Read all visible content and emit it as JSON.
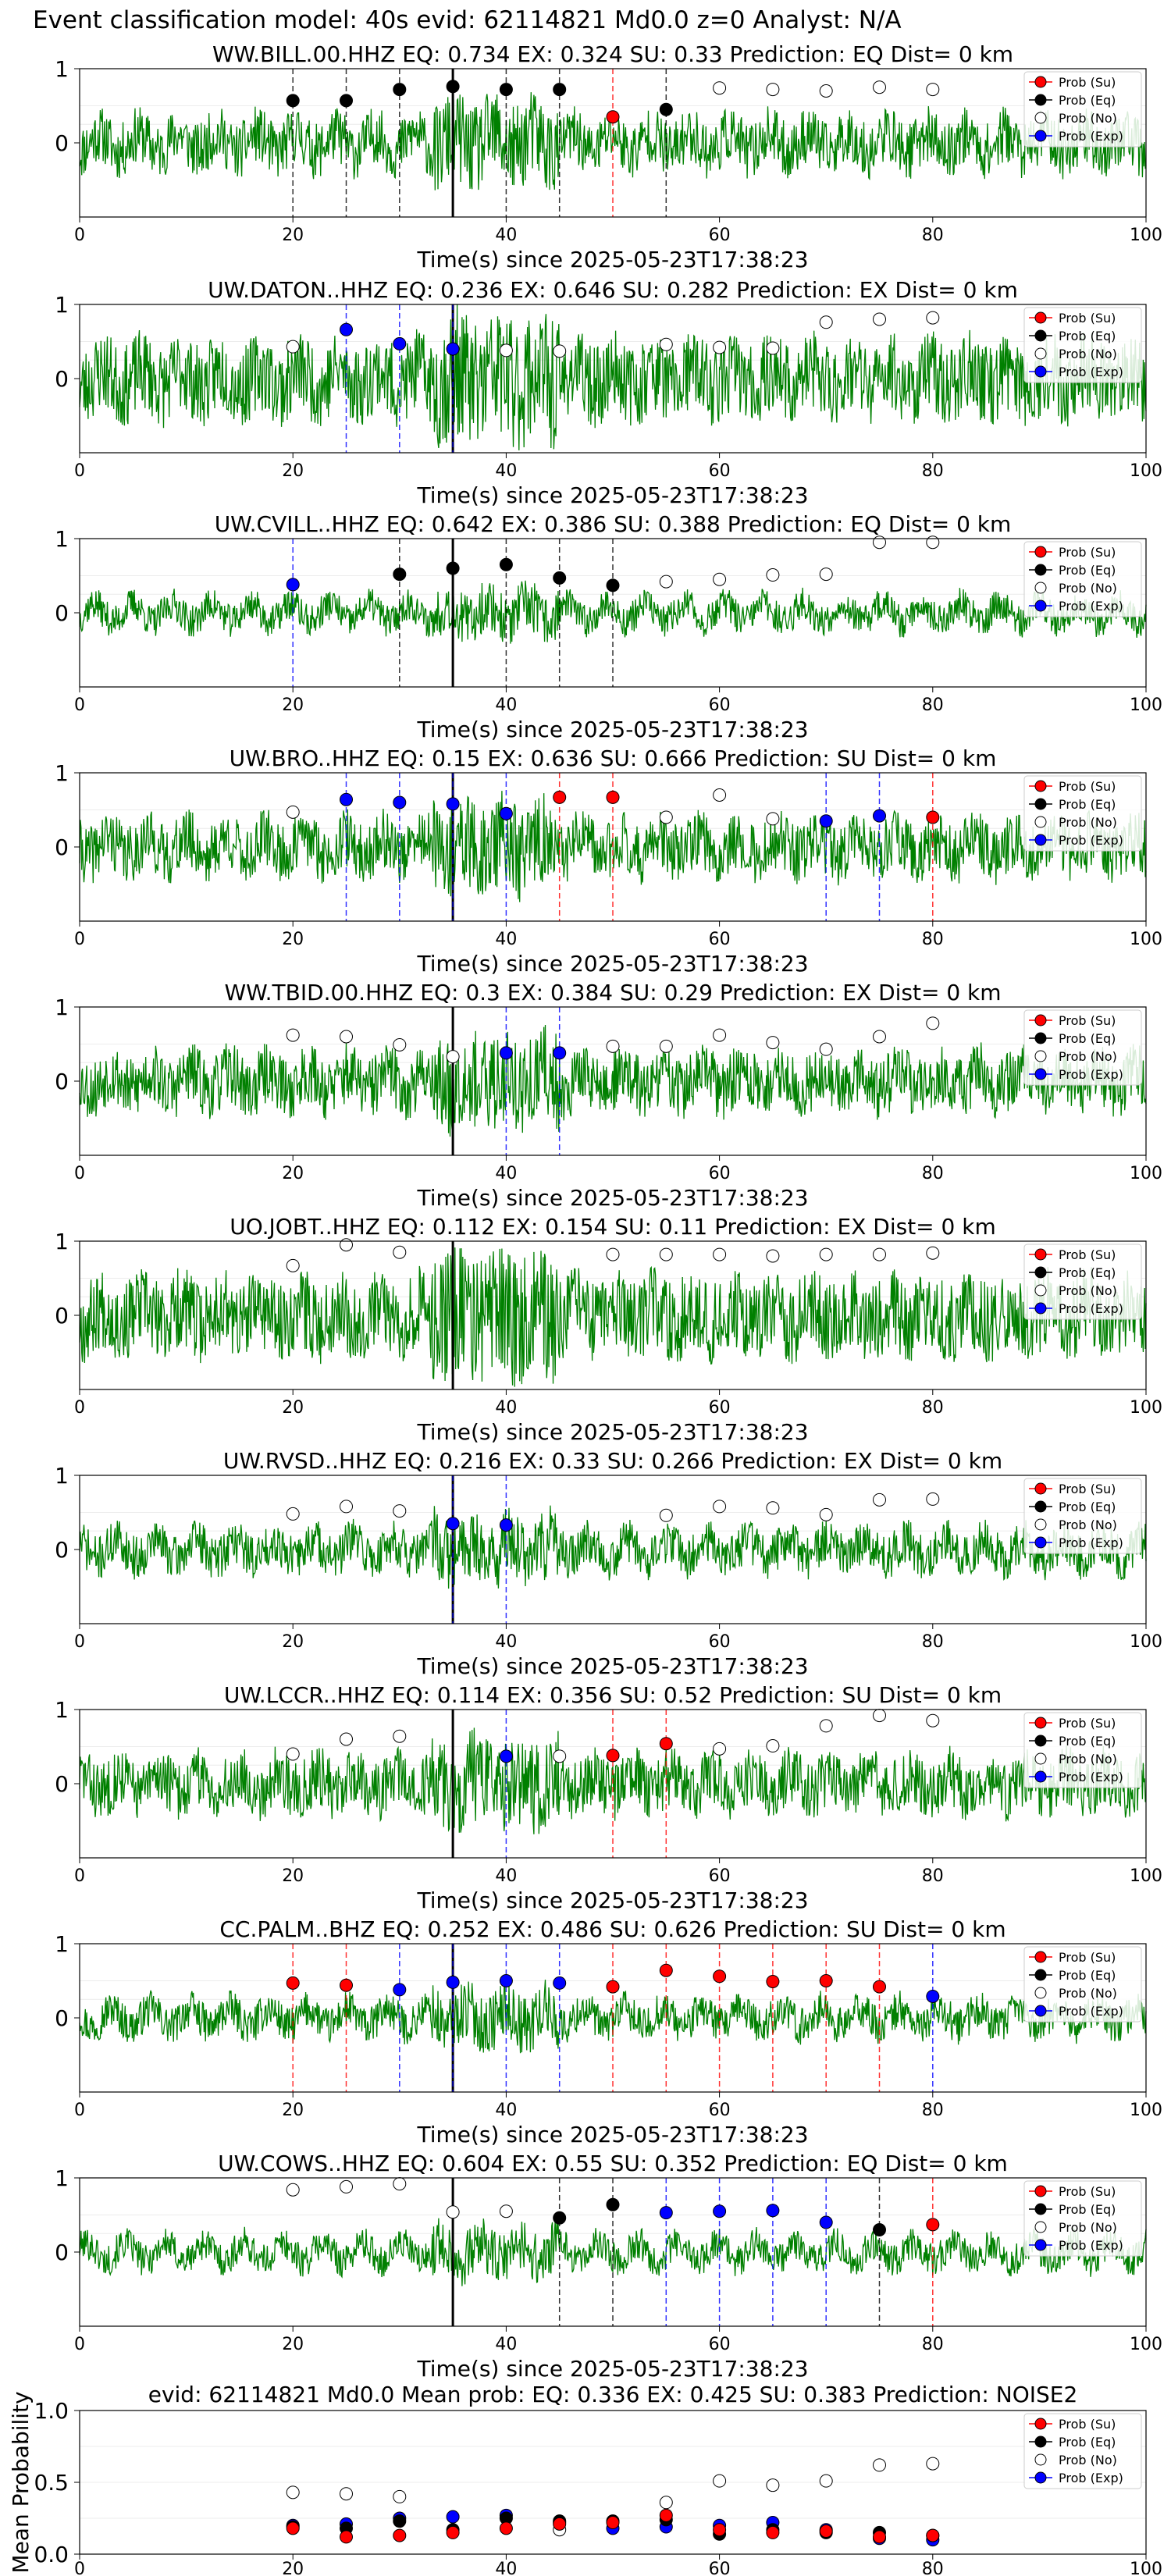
{
  "suptitle": "Event classification model: 40s evid: 62114821 Md0.0 z=0 Analyst: N/A",
  "legend_labels": [
    "Prob (Su)",
    "Prob (Eq)",
    "Prob (No)",
    "Prob (Exp)"
  ],
  "colors": {
    "trace": "#008000",
    "su": "#ff0000",
    "eq": "#000000",
    "no": "#ffffff",
    "exp": "#0000ff",
    "origin_line": "#000000"
  },
  "chart_data": [
    {
      "type": "line",
      "station": "WW.BILL.00.HHZ",
      "title": "WW.BILL.00.HHZ   EQ: 0.734  EX: 0.324  SU: 0.33   Prediction: EQ    Dist= 0 km",
      "xlabel": "Time(s) since 2025-05-23T17:38:23",
      "ylabel": "",
      "xlim": [
        0,
        100
      ],
      "ylim": [
        -1,
        1
      ],
      "xticks": [
        0,
        20,
        40,
        60,
        80,
        100
      ],
      "yticks": [
        0,
        1
      ],
      "origin_time": 35,
      "trace_amplitude": 0.38,
      "trace_seed": 11,
      "legend": "upper right",
      "points": [
        {
          "x": 20,
          "y": 0.57,
          "cls": "eq"
        },
        {
          "x": 25,
          "y": 0.57,
          "cls": "eq"
        },
        {
          "x": 30,
          "y": 0.72,
          "cls": "eq"
        },
        {
          "x": 35,
          "y": 0.76,
          "cls": "eq"
        },
        {
          "x": 40,
          "y": 0.72,
          "cls": "eq"
        },
        {
          "x": 45,
          "y": 0.72,
          "cls": "eq"
        },
        {
          "x": 50,
          "y": 0.35,
          "cls": "su"
        },
        {
          "x": 55,
          "y": 0.45,
          "cls": "eq"
        },
        {
          "x": 60,
          "y": 0.74,
          "cls": "no"
        },
        {
          "x": 65,
          "y": 0.72,
          "cls": "no"
        },
        {
          "x": 70,
          "y": 0.7,
          "cls": "no"
        },
        {
          "x": 75,
          "y": 0.75,
          "cls": "no"
        },
        {
          "x": 80,
          "y": 0.72,
          "cls": "no"
        }
      ]
    },
    {
      "type": "line",
      "station": "UW.DATON..HHZ",
      "title": "UW.DATON..HHZ   EQ: 0.236  EX: 0.646  SU: 0.282   Prediction: EX    Dist= 0 km",
      "xlabel": "Time(s) since 2025-05-23T17:38:23",
      "ylabel": "",
      "xlim": [
        0,
        100
      ],
      "ylim": [
        -1,
        1
      ],
      "xticks": [
        0,
        20,
        40,
        60,
        80,
        100
      ],
      "yticks": [
        0,
        1
      ],
      "origin_time": 35,
      "trace_amplitude": 0.55,
      "trace_seed": 23,
      "legend": "upper right",
      "points": [
        {
          "x": 20,
          "y": 0.43,
          "cls": "no"
        },
        {
          "x": 25,
          "y": 0.66,
          "cls": "exp"
        },
        {
          "x": 30,
          "y": 0.47,
          "cls": "exp"
        },
        {
          "x": 35,
          "y": 0.4,
          "cls": "exp"
        },
        {
          "x": 40,
          "y": 0.38,
          "cls": "no"
        },
        {
          "x": 45,
          "y": 0.37,
          "cls": "no"
        },
        {
          "x": 55,
          "y": 0.46,
          "cls": "no"
        },
        {
          "x": 60,
          "y": 0.42,
          "cls": "no"
        },
        {
          "x": 65,
          "y": 0.41,
          "cls": "no"
        },
        {
          "x": 70,
          "y": 0.76,
          "cls": "no"
        },
        {
          "x": 75,
          "y": 0.8,
          "cls": "no"
        },
        {
          "x": 80,
          "y": 0.82,
          "cls": "no"
        }
      ]
    },
    {
      "type": "line",
      "station": "UW.CVILL..HHZ",
      "title": "UW.CVILL..HHZ   EQ: 0.642  EX: 0.386  SU: 0.388   Prediction: EQ    Dist= 0 km",
      "xlabel": "Time(s) since 2025-05-23T17:38:23",
      "ylabel": "",
      "xlim": [
        0,
        100
      ],
      "ylim": [
        -1,
        1
      ],
      "xticks": [
        0,
        20,
        40,
        60,
        80,
        100
      ],
      "yticks": [
        0,
        1
      ],
      "origin_time": 35,
      "trace_amplitude": 0.22,
      "trace_seed": 37,
      "legend": "upper right",
      "points": [
        {
          "x": 20,
          "y": 0.38,
          "cls": "exp"
        },
        {
          "x": 30,
          "y": 0.52,
          "cls": "eq"
        },
        {
          "x": 35,
          "y": 0.6,
          "cls": "eq"
        },
        {
          "x": 40,
          "y": 0.65,
          "cls": "eq"
        },
        {
          "x": 45,
          "y": 0.47,
          "cls": "eq"
        },
        {
          "x": 50,
          "y": 0.37,
          "cls": "eq"
        },
        {
          "x": 55,
          "y": 0.42,
          "cls": "no"
        },
        {
          "x": 60,
          "y": 0.45,
          "cls": "no"
        },
        {
          "x": 65,
          "y": 0.51,
          "cls": "no"
        },
        {
          "x": 70,
          "y": 0.52,
          "cls": "no"
        },
        {
          "x": 75,
          "y": 0.95,
          "cls": "no"
        },
        {
          "x": 80,
          "y": 0.95,
          "cls": "no"
        }
      ]
    },
    {
      "type": "line",
      "station": "UW.BRO..HHZ",
      "title": "UW.BRO..HHZ   EQ: 0.15  EX: 0.636  SU: 0.666   Prediction: SU    Dist= 0 km",
      "xlabel": "Time(s) since 2025-05-23T17:38:23",
      "ylabel": "",
      "xlim": [
        0,
        100
      ],
      "ylim": [
        -1,
        1
      ],
      "xticks": [
        0,
        20,
        40,
        60,
        80,
        100
      ],
      "yticks": [
        0,
        1
      ],
      "origin_time": 35,
      "trace_amplitude": 0.4,
      "trace_seed": 41,
      "legend": "upper right",
      "points": [
        {
          "x": 20,
          "y": 0.47,
          "cls": "no"
        },
        {
          "x": 25,
          "y": 0.64,
          "cls": "exp"
        },
        {
          "x": 30,
          "y": 0.6,
          "cls": "exp"
        },
        {
          "x": 35,
          "y": 0.58,
          "cls": "exp"
        },
        {
          "x": 40,
          "y": 0.45,
          "cls": "exp"
        },
        {
          "x": 45,
          "y": 0.67,
          "cls": "su"
        },
        {
          "x": 50,
          "y": 0.67,
          "cls": "su"
        },
        {
          "x": 55,
          "y": 0.4,
          "cls": "no"
        },
        {
          "x": 60,
          "y": 0.7,
          "cls": "no"
        },
        {
          "x": 65,
          "y": 0.38,
          "cls": "no"
        },
        {
          "x": 70,
          "y": 0.35,
          "cls": "exp"
        },
        {
          "x": 75,
          "y": 0.42,
          "cls": "exp"
        },
        {
          "x": 80,
          "y": 0.4,
          "cls": "su"
        }
      ]
    },
    {
      "type": "line",
      "station": "WW.TBID.00.HHZ",
      "title": "WW.TBID.00.HHZ   EQ: 0.3  EX: 0.384  SU: 0.29   Prediction: EX    Dist= 0 km",
      "xlabel": "Time(s) since 2025-05-23T17:38:23",
      "ylabel": "",
      "xlim": [
        0,
        100
      ],
      "ylim": [
        -1,
        1
      ],
      "xticks": [
        0,
        20,
        40,
        60,
        80,
        100
      ],
      "yticks": [
        0,
        1
      ],
      "origin_time": 35,
      "trace_amplitude": 0.42,
      "trace_seed": 53,
      "legend": "upper right",
      "points": [
        {
          "x": 20,
          "y": 0.62,
          "cls": "no"
        },
        {
          "x": 25,
          "y": 0.6,
          "cls": "no"
        },
        {
          "x": 30,
          "y": 0.49,
          "cls": "no"
        },
        {
          "x": 35,
          "y": 0.33,
          "cls": "no"
        },
        {
          "x": 40,
          "y": 0.38,
          "cls": "exp"
        },
        {
          "x": 45,
          "y": 0.38,
          "cls": "exp"
        },
        {
          "x": 50,
          "y": 0.47,
          "cls": "no"
        },
        {
          "x": 55,
          "y": 0.47,
          "cls": "no"
        },
        {
          "x": 60,
          "y": 0.62,
          "cls": "no"
        },
        {
          "x": 65,
          "y": 0.52,
          "cls": "no"
        },
        {
          "x": 70,
          "y": 0.43,
          "cls": "no"
        },
        {
          "x": 75,
          "y": 0.6,
          "cls": "no"
        },
        {
          "x": 80,
          "y": 0.78,
          "cls": "no"
        }
      ]
    },
    {
      "type": "line",
      "station": "UO.JOBT..HHZ",
      "title": "UO.JOBT..HHZ   EQ: 0.112  EX: 0.154  SU: 0.11   Prediction: EX    Dist= 0 km",
      "xlabel": "Time(s) since 2025-05-23T17:38:23",
      "ylabel": "",
      "xlim": [
        0,
        100
      ],
      "ylim": [
        -1,
        1
      ],
      "xticks": [
        0,
        20,
        40,
        60,
        80,
        100
      ],
      "yticks": [
        0,
        1
      ],
      "origin_time": 35,
      "trace_amplitude": 0.55,
      "trace_seed": 67,
      "legend": "upper right",
      "points": [
        {
          "x": 20,
          "y": 0.67,
          "cls": "no"
        },
        {
          "x": 25,
          "y": 0.95,
          "cls": "no"
        },
        {
          "x": 30,
          "y": 0.85,
          "cls": "no"
        },
        {
          "x": 50,
          "y": 0.82,
          "cls": "no"
        },
        {
          "x": 55,
          "y": 0.82,
          "cls": "no"
        },
        {
          "x": 60,
          "y": 0.82,
          "cls": "no"
        },
        {
          "x": 65,
          "y": 0.8,
          "cls": "no"
        },
        {
          "x": 70,
          "y": 0.82,
          "cls": "no"
        },
        {
          "x": 75,
          "y": 0.82,
          "cls": "no"
        },
        {
          "x": 80,
          "y": 0.84,
          "cls": "no"
        }
      ]
    },
    {
      "type": "line",
      "station": "UW.RVSD..HHZ",
      "title": "UW.RVSD..HHZ   EQ: 0.216  EX: 0.33  SU: 0.266   Prediction: EX    Dist= 0 km",
      "xlabel": "Time(s) since 2025-05-23T17:38:23",
      "ylabel": "",
      "xlim": [
        0,
        100
      ],
      "ylim": [
        -1,
        1
      ],
      "xticks": [
        0,
        20,
        40,
        60,
        80,
        100
      ],
      "yticks": [
        0,
        1
      ],
      "origin_time": 35,
      "trace_amplitude": 0.3,
      "trace_seed": 71,
      "legend": "upper right",
      "points": [
        {
          "x": 20,
          "y": 0.48,
          "cls": "no"
        },
        {
          "x": 25,
          "y": 0.58,
          "cls": "no"
        },
        {
          "x": 30,
          "y": 0.52,
          "cls": "no"
        },
        {
          "x": 35,
          "y": 0.35,
          "cls": "exp"
        },
        {
          "x": 40,
          "y": 0.33,
          "cls": "exp"
        },
        {
          "x": 55,
          "y": 0.46,
          "cls": "no"
        },
        {
          "x": 60,
          "y": 0.58,
          "cls": "no"
        },
        {
          "x": 65,
          "y": 0.56,
          "cls": "no"
        },
        {
          "x": 70,
          "y": 0.47,
          "cls": "no"
        },
        {
          "x": 75,
          "y": 0.67,
          "cls": "no"
        },
        {
          "x": 80,
          "y": 0.68,
          "cls": "no"
        }
      ]
    },
    {
      "type": "line",
      "station": "UW.LCCR..HHZ",
      "title": "UW.LCCR..HHZ   EQ: 0.114  EX: 0.356  SU: 0.52   Prediction: SU    Dist= 0 km",
      "xlabel": "Time(s) since 2025-05-23T17:38:23",
      "ylabel": "",
      "xlim": [
        0,
        100
      ],
      "ylim": [
        -1,
        1
      ],
      "xticks": [
        0,
        20,
        40,
        60,
        80,
        100
      ],
      "yticks": [
        0,
        1
      ],
      "origin_time": 35,
      "trace_amplitude": 0.4,
      "trace_seed": 83,
      "legend": "upper right",
      "points": [
        {
          "x": 20,
          "y": 0.4,
          "cls": "no"
        },
        {
          "x": 25,
          "y": 0.6,
          "cls": "no"
        },
        {
          "x": 30,
          "y": 0.64,
          "cls": "no"
        },
        {
          "x": 40,
          "y": 0.37,
          "cls": "exp"
        },
        {
          "x": 45,
          "y": 0.37,
          "cls": "no"
        },
        {
          "x": 50,
          "y": 0.38,
          "cls": "su"
        },
        {
          "x": 55,
          "y": 0.54,
          "cls": "su"
        },
        {
          "x": 60,
          "y": 0.47,
          "cls": "no"
        },
        {
          "x": 65,
          "y": 0.51,
          "cls": "no"
        },
        {
          "x": 70,
          "y": 0.78,
          "cls": "no"
        },
        {
          "x": 75,
          "y": 0.92,
          "cls": "no"
        },
        {
          "x": 80,
          "y": 0.85,
          "cls": "no"
        }
      ]
    },
    {
      "type": "line",
      "station": "CC.PALM..BHZ",
      "title": "CC.PALM..BHZ   EQ: 0.252  EX: 0.486  SU: 0.626   Prediction: SU    Dist= 0 km",
      "xlabel": "Time(s) since 2025-05-23T17:38:23",
      "ylabel": "",
      "xlim": [
        0,
        100
      ],
      "ylim": [
        -1,
        1
      ],
      "xticks": [
        0,
        20,
        40,
        60,
        80,
        100
      ],
      "yticks": [
        0,
        1
      ],
      "origin_time": 35,
      "trace_amplitude": 0.25,
      "trace_seed": 97,
      "legend": "upper right",
      "points": [
        {
          "x": 20,
          "y": 0.47,
          "cls": "su"
        },
        {
          "x": 25,
          "y": 0.44,
          "cls": "su"
        },
        {
          "x": 30,
          "y": 0.38,
          "cls": "exp"
        },
        {
          "x": 35,
          "y": 0.48,
          "cls": "exp"
        },
        {
          "x": 40,
          "y": 0.5,
          "cls": "exp"
        },
        {
          "x": 45,
          "y": 0.47,
          "cls": "exp"
        },
        {
          "x": 50,
          "y": 0.42,
          "cls": "su"
        },
        {
          "x": 55,
          "y": 0.64,
          "cls": "su"
        },
        {
          "x": 60,
          "y": 0.56,
          "cls": "su"
        },
        {
          "x": 65,
          "y": 0.49,
          "cls": "su"
        },
        {
          "x": 70,
          "y": 0.5,
          "cls": "su"
        },
        {
          "x": 75,
          "y": 0.42,
          "cls": "su"
        },
        {
          "x": 80,
          "y": 0.29,
          "cls": "exp"
        }
      ]
    },
    {
      "type": "line",
      "station": "UW.COWS..HHZ",
      "title": "UW.COWS..HHZ   EQ: 0.604  EX: 0.55  SU: 0.352   Prediction: EQ    Dist= 0 km",
      "xlabel": "Time(s) since 2025-05-23T17:38:23",
      "ylabel": "",
      "xlim": [
        0,
        100
      ],
      "ylim": [
        -1,
        1
      ],
      "xticks": [
        0,
        20,
        40,
        60,
        80,
        100
      ],
      "yticks": [
        0,
        1
      ],
      "origin_time": 35,
      "trace_amplitude": 0.22,
      "trace_seed": 101,
      "legend": "upper right",
      "points": [
        {
          "x": 20,
          "y": 0.84,
          "cls": "no"
        },
        {
          "x": 25,
          "y": 0.88,
          "cls": "no"
        },
        {
          "x": 30,
          "y": 0.92,
          "cls": "no"
        },
        {
          "x": 35,
          "y": 0.54,
          "cls": "no"
        },
        {
          "x": 40,
          "y": 0.55,
          "cls": "no"
        },
        {
          "x": 45,
          "y": 0.46,
          "cls": "eq"
        },
        {
          "x": 50,
          "y": 0.64,
          "cls": "eq"
        },
        {
          "x": 55,
          "y": 0.53,
          "cls": "exp"
        },
        {
          "x": 60,
          "y": 0.55,
          "cls": "exp"
        },
        {
          "x": 65,
          "y": 0.56,
          "cls": "exp"
        },
        {
          "x": 70,
          "y": 0.4,
          "cls": "exp"
        },
        {
          "x": 75,
          "y": 0.3,
          "cls": "eq"
        },
        {
          "x": 80,
          "y": 0.37,
          "cls": "su"
        }
      ]
    },
    {
      "type": "scatter",
      "station": "",
      "title": "evid: 62114821  Md0.0   Mean prob:   EQ: 0.336  EX: 0.425  SU: 0.383   Prediction: NOISE2",
      "xlabel": "",
      "ylabel": "Mean Probability",
      "xlim": [
        0,
        100
      ],
      "ylim": [
        0,
        1
      ],
      "xticks": [
        0,
        20,
        40,
        60,
        80,
        100
      ],
      "yticks": [
        0.0,
        0.5,
        1.0
      ],
      "ytick_labels": [
        "0.0",
        "0.5",
        "1.0"
      ],
      "legend": "upper right",
      "x": [
        20,
        25,
        30,
        35,
        40,
        45,
        50,
        55,
        60,
        65,
        70,
        75,
        80
      ],
      "series": [
        {
          "name": "Prob (No)",
          "cls": "no",
          "values": [
            0.43,
            0.42,
            0.4,
            null,
            null,
            0.17,
            null,
            0.36,
            0.51,
            0.48,
            0.51,
            0.62,
            0.63
          ]
        },
        {
          "name": "Prob (Exp)",
          "cls": "exp",
          "values": [
            0.2,
            0.21,
            0.25,
            0.26,
            0.27,
            0.22,
            0.18,
            0.19,
            0.2,
            0.22,
            0.17,
            0.11,
            0.1
          ]
        },
        {
          "name": "Prob (Eq)",
          "cls": "eq",
          "values": [
            0.19,
            0.18,
            0.23,
            0.17,
            0.25,
            0.23,
            0.23,
            0.24,
            0.14,
            0.17,
            0.15,
            0.15,
            0.13
          ]
        },
        {
          "name": "Prob (Su)",
          "cls": "su",
          "values": [
            0.18,
            0.12,
            0.13,
            0.15,
            0.18,
            0.21,
            0.22,
            0.27,
            0.17,
            0.15,
            0.16,
            0.12,
            0.13
          ]
        }
      ]
    }
  ]
}
